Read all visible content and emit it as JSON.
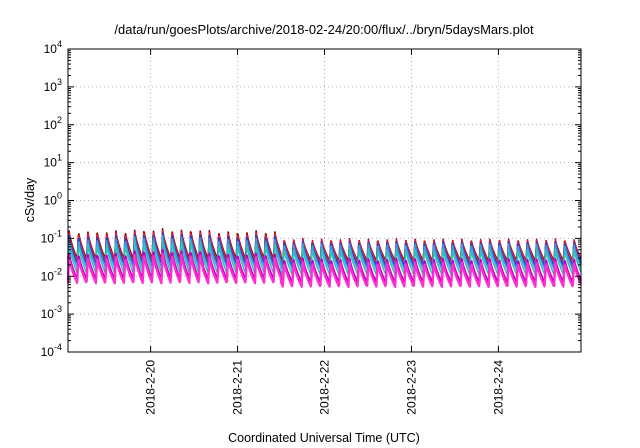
{
  "chart_data": {
    "type": "line",
    "title": "/data/run/goesPlots/archive/2018-02-24/20:00/flux/../bryn/5daysMars.plot",
    "xlabel": "Coordinated Universal Time (UTC)",
    "ylabel": "cSv/day",
    "x_tick_labels": [
      "2018-2-20",
      "2018-2-21",
      "2018-2-22",
      "2018-2-23",
      "2018-2-24"
    ],
    "x_tick_days": [
      1,
      2,
      3,
      4,
      5
    ],
    "xlim_days": [
      0.05,
      5.95
    ],
    "y_scale": "log",
    "ylim": [
      0.0001,
      10000
    ],
    "y_tick_base": "10",
    "y_tick_exponents": [
      "4",
      "3",
      "2",
      "1",
      "0",
      "-1",
      "-2",
      "-3",
      "-4"
    ],
    "y_tick_values": [
      10000,
      1000,
      100,
      10,
      1,
      0.1,
      0.01,
      0.001,
      0.0001
    ],
    "grid": true,
    "legend": "none",
    "sawtooth_periods_per_day": 9.3,
    "series": [
      {
        "color": "#8b0000",
        "peak": 0.16,
        "trough": 0.028,
        "peak_day_1": 0.18,
        "peak_after_2_5": 0.1,
        "trough_after_2_5": 0.025
      },
      {
        "color": "#e8234f",
        "peak": 0.14,
        "trough": 0.024,
        "peak_day_1": 0.16,
        "peak_after_2_5": 0.095,
        "trough_after_2_5": 0.022
      },
      {
        "color": "#1f3fbf",
        "peak": 0.12,
        "trough": 0.02,
        "peak_day_1": 0.14,
        "peak_after_2_5": 0.085,
        "trough_after_2_5": 0.018
      },
      {
        "color": "#3a9ae8",
        "peak": 0.1,
        "trough": 0.017,
        "peak_day_1": 0.12,
        "peak_after_2_5": 0.075,
        "trough_after_2_5": 0.015
      },
      {
        "color": "#2ec4b6",
        "peak": 0.075,
        "trough": 0.012,
        "peak_day_1": 0.09,
        "peak_after_2_5": 0.055,
        "trough_after_2_5": 0.011
      },
      {
        "color": "#c000c0",
        "peak": 0.04,
        "trough": 0.008,
        "peak_day_1": 0.05,
        "peak_after_2_5": 0.03,
        "trough_after_2_5": 0.0065
      },
      {
        "color": "#ff2fd0",
        "peak": 0.032,
        "trough": 0.0065,
        "peak_day_1": 0.04,
        "peak_after_2_5": 0.024,
        "trough_after_2_5": 0.0052
      }
    ]
  }
}
